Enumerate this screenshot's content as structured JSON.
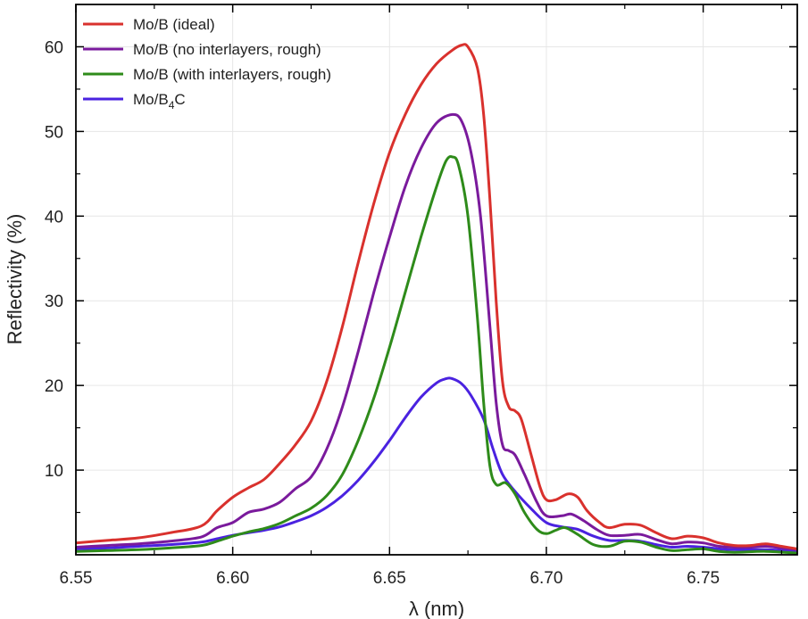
{
  "chart_data": {
    "type": "line",
    "title": "",
    "xlabel": "λ (nm)",
    "ylabel": "Reflectivity (%)",
    "xlim": [
      6.55,
      6.78
    ],
    "ylim": [
      0,
      65
    ],
    "x_ticks": [
      6.55,
      6.6,
      6.65,
      6.7,
      6.75
    ],
    "x_tick_labels": [
      "6.55",
      "6.60",
      "6.65",
      "6.70",
      "6.75"
    ],
    "y_ticks": [
      10,
      20,
      30,
      40,
      50,
      60
    ],
    "y_tick_labels": [
      "10",
      "20",
      "30",
      "40",
      "50",
      "60"
    ],
    "grid": true,
    "legend_position": "top-left",
    "series": [
      {
        "name": "Mo/B (ideal)",
        "legend_main": "Mo/B (ideal)",
        "legend_sub": "",
        "legend_tail": "",
        "color": "#d9312d",
        "points": [
          [
            6.55,
            1.4
          ],
          [
            6.56,
            1.7
          ],
          [
            6.57,
            2.0
          ],
          [
            6.58,
            2.6
          ],
          [
            6.59,
            3.4
          ],
          [
            6.595,
            5.2
          ],
          [
            6.6,
            6.8
          ],
          [
            6.605,
            7.9
          ],
          [
            6.61,
            8.9
          ],
          [
            6.615,
            10.8
          ],
          [
            6.62,
            13.0
          ],
          [
            6.625,
            15.8
          ],
          [
            6.63,
            20.5
          ],
          [
            6.635,
            27.0
          ],
          [
            6.64,
            34.5
          ],
          [
            6.645,
            41.5
          ],
          [
            6.65,
            47.5
          ],
          [
            6.655,
            52.0
          ],
          [
            6.66,
            55.5
          ],
          [
            6.665,
            58.0
          ],
          [
            6.67,
            59.6
          ],
          [
            6.673,
            60.2
          ],
          [
            6.675,
            60.0
          ],
          [
            6.678,
            57.5
          ],
          [
            6.68,
            52.0
          ],
          [
            6.682,
            42.0
          ],
          [
            6.684,
            30.0
          ],
          [
            6.686,
            20.5
          ],
          [
            6.688,
            17.5
          ],
          [
            6.69,
            17.0
          ],
          [
            6.692,
            16.0
          ],
          [
            6.695,
            12.0
          ],
          [
            6.698,
            8.0
          ],
          [
            6.7,
            6.5
          ],
          [
            6.703,
            6.5
          ],
          [
            6.707,
            7.2
          ],
          [
            6.71,
            6.8
          ],
          [
            6.713,
            5.2
          ],
          [
            6.717,
            3.8
          ],
          [
            6.72,
            3.2
          ],
          [
            6.725,
            3.6
          ],
          [
            6.73,
            3.5
          ],
          [
            6.735,
            2.6
          ],
          [
            6.74,
            1.9
          ],
          [
            6.745,
            2.2
          ],
          [
            6.75,
            2.0
          ],
          [
            6.755,
            1.4
          ],
          [
            6.76,
            1.1
          ],
          [
            6.765,
            1.1
          ],
          [
            6.77,
            1.3
          ],
          [
            6.775,
            1.0
          ],
          [
            6.78,
            0.7
          ]
        ]
      },
      {
        "name": "Mo/B (no interlayers, rough)",
        "legend_main": "Mo/B (no interlayers, rough)",
        "legend_sub": "",
        "legend_tail": "",
        "color": "#7a1a9c",
        "points": [
          [
            6.55,
            0.9
          ],
          [
            6.56,
            1.1
          ],
          [
            6.57,
            1.3
          ],
          [
            6.58,
            1.6
          ],
          [
            6.59,
            2.1
          ],
          [
            6.595,
            3.2
          ],
          [
            6.6,
            3.8
          ],
          [
            6.605,
            5.0
          ],
          [
            6.61,
            5.4
          ],
          [
            6.615,
            6.2
          ],
          [
            6.62,
            7.8
          ],
          [
            6.625,
            9.2
          ],
          [
            6.63,
            12.5
          ],
          [
            6.635,
            17.5
          ],
          [
            6.64,
            24.0
          ],
          [
            6.645,
            31.0
          ],
          [
            6.65,
            37.5
          ],
          [
            6.655,
            43.5
          ],
          [
            6.66,
            48.0
          ],
          [
            6.665,
            51.0
          ],
          [
            6.67,
            52.0
          ],
          [
            6.673,
            51.2
          ],
          [
            6.676,
            47.5
          ],
          [
            6.679,
            40.0
          ],
          [
            6.682,
            27.0
          ],
          [
            6.684,
            18.0
          ],
          [
            6.686,
            13.0
          ],
          [
            6.688,
            12.3
          ],
          [
            6.69,
            11.8
          ],
          [
            6.693,
            9.5
          ],
          [
            6.697,
            6.2
          ],
          [
            6.7,
            4.6
          ],
          [
            6.705,
            4.6
          ],
          [
            6.708,
            4.8
          ],
          [
            6.712,
            4.0
          ],
          [
            6.716,
            3.0
          ],
          [
            6.72,
            2.3
          ],
          [
            6.725,
            2.3
          ],
          [
            6.73,
            2.4
          ],
          [
            6.735,
            1.8
          ],
          [
            6.74,
            1.3
          ],
          [
            6.745,
            1.5
          ],
          [
            6.75,
            1.4
          ],
          [
            6.755,
            1.0
          ],
          [
            6.76,
            0.9
          ],
          [
            6.765,
            0.9
          ],
          [
            6.77,
            1.0
          ],
          [
            6.775,
            0.8
          ],
          [
            6.78,
            0.6
          ]
        ]
      },
      {
        "name": "Mo/B (with interlayers, rough)",
        "legend_main": "Mo/B (with interlayers, rough)",
        "legend_sub": "",
        "legend_tail": "",
        "color": "#2e8b1a",
        "points": [
          [
            6.55,
            0.4
          ],
          [
            6.56,
            0.5
          ],
          [
            6.57,
            0.6
          ],
          [
            6.58,
            0.8
          ],
          [
            6.59,
            1.1
          ],
          [
            6.595,
            1.6
          ],
          [
            6.6,
            2.2
          ],
          [
            6.605,
            2.7
          ],
          [
            6.61,
            3.1
          ],
          [
            6.615,
            3.7
          ],
          [
            6.62,
            4.6
          ],
          [
            6.625,
            5.5
          ],
          [
            6.63,
            7.0
          ],
          [
            6.635,
            9.5
          ],
          [
            6.64,
            13.5
          ],
          [
            6.645,
            18.5
          ],
          [
            6.65,
            24.5
          ],
          [
            6.655,
            31.0
          ],
          [
            6.66,
            37.5
          ],
          [
            6.665,
            43.5
          ],
          [
            6.668,
            46.5
          ],
          [
            6.67,
            47.0
          ],
          [
            6.672,
            46.0
          ],
          [
            6.675,
            40.0
          ],
          [
            6.678,
            28.0
          ],
          [
            6.68,
            18.0
          ],
          [
            6.682,
            10.5
          ],
          [
            6.684,
            8.3
          ],
          [
            6.687,
            8.5
          ],
          [
            6.69,
            7.2
          ],
          [
            6.693,
            5.0
          ],
          [
            6.697,
            3.0
          ],
          [
            6.7,
            2.5
          ],
          [
            6.703,
            2.9
          ],
          [
            6.706,
            3.2
          ],
          [
            6.71,
            2.4
          ],
          [
            6.715,
            1.2
          ],
          [
            6.72,
            1.0
          ],
          [
            6.725,
            1.6
          ],
          [
            6.73,
            1.5
          ],
          [
            6.735,
            0.9
          ],
          [
            6.74,
            0.5
          ],
          [
            6.745,
            0.6
          ],
          [
            6.75,
            0.7
          ],
          [
            6.755,
            0.4
          ],
          [
            6.76,
            0.3
          ],
          [
            6.77,
            0.4
          ],
          [
            6.78,
            0.2
          ]
        ]
      },
      {
        "name": "Mo/B4C",
        "legend_main": "Mo/B",
        "legend_sub": "4",
        "legend_tail": "C",
        "color": "#4a22e0",
        "points": [
          [
            6.55,
            0.7
          ],
          [
            6.56,
            0.8
          ],
          [
            6.57,
            1.0
          ],
          [
            6.58,
            1.2
          ],
          [
            6.59,
            1.5
          ],
          [
            6.595,
            1.9
          ],
          [
            6.6,
            2.3
          ],
          [
            6.605,
            2.6
          ],
          [
            6.61,
            2.9
          ],
          [
            6.615,
            3.3
          ],
          [
            6.62,
            3.9
          ],
          [
            6.625,
            4.6
          ],
          [
            6.63,
            5.6
          ],
          [
            6.635,
            7.0
          ],
          [
            6.64,
            8.8
          ],
          [
            6.645,
            11.0
          ],
          [
            6.65,
            13.5
          ],
          [
            6.655,
            16.2
          ],
          [
            6.66,
            18.6
          ],
          [
            6.665,
            20.3
          ],
          [
            6.668,
            20.8
          ],
          [
            6.67,
            20.8
          ],
          [
            6.673,
            20.2
          ],
          [
            6.676,
            18.8
          ],
          [
            6.68,
            16.0
          ],
          [
            6.683,
            12.5
          ],
          [
            6.686,
            9.5
          ],
          [
            6.69,
            7.5
          ],
          [
            6.695,
            5.5
          ],
          [
            6.7,
            3.8
          ],
          [
            6.705,
            3.3
          ],
          [
            6.71,
            3.0
          ],
          [
            6.715,
            2.2
          ],
          [
            6.72,
            1.7
          ],
          [
            6.725,
            1.7
          ],
          [
            6.73,
            1.6
          ],
          [
            6.735,
            1.2
          ],
          [
            6.74,
            0.9
          ],
          [
            6.745,
            1.0
          ],
          [
            6.75,
            0.9
          ],
          [
            6.755,
            0.7
          ],
          [
            6.76,
            0.6
          ],
          [
            6.77,
            0.6
          ],
          [
            6.78,
            0.4
          ]
        ]
      }
    ]
  }
}
